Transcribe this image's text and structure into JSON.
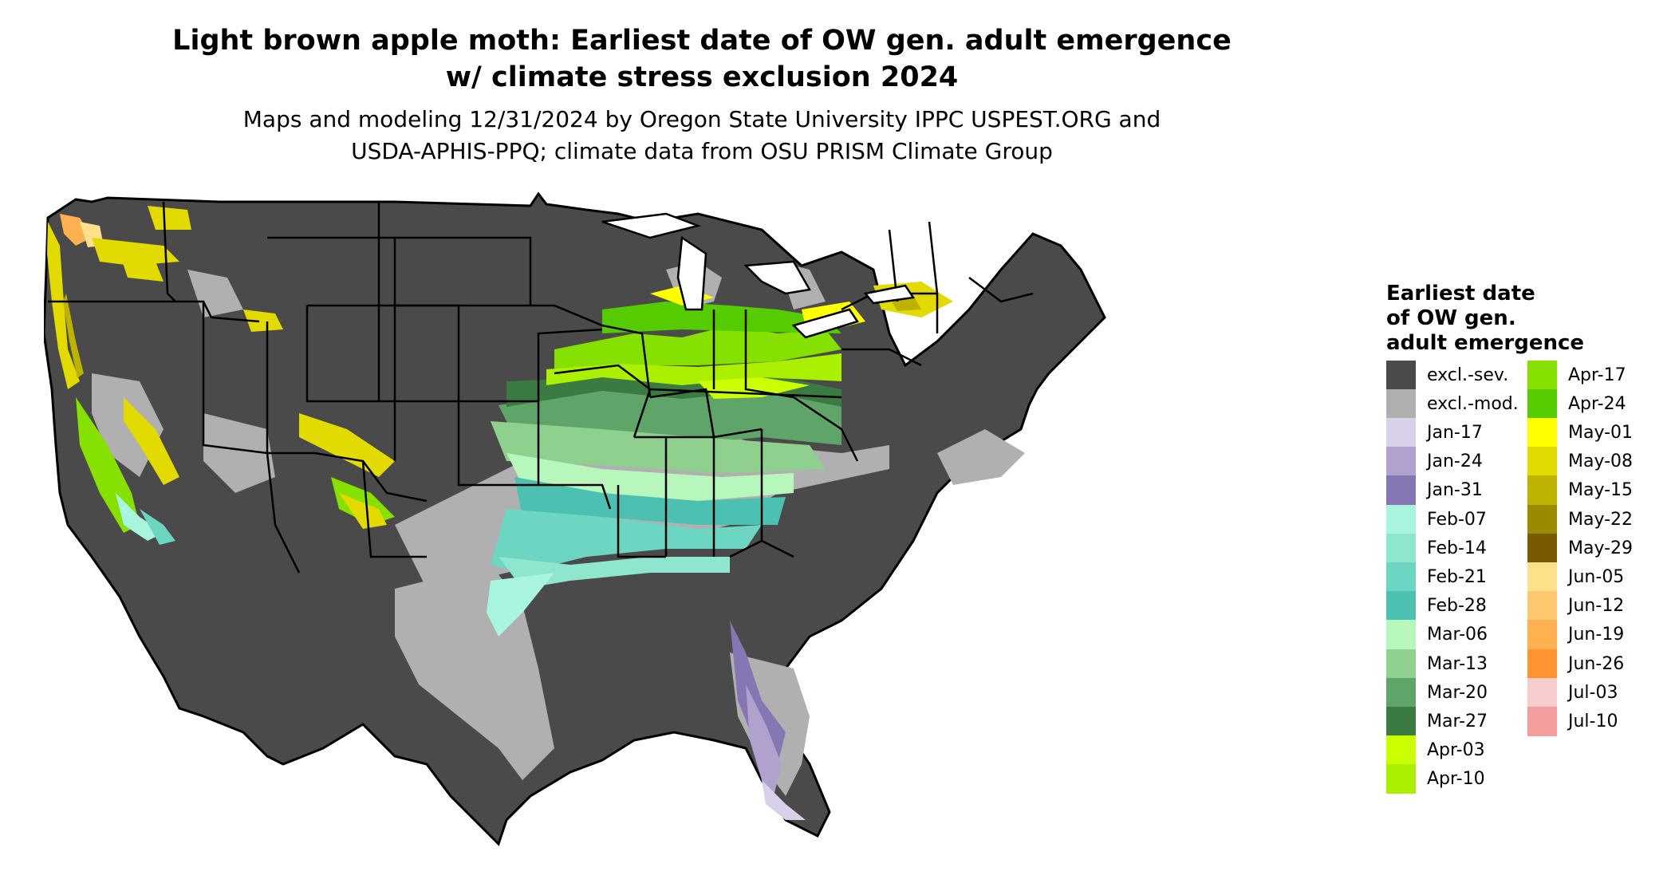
{
  "title_line1": "Light brown apple moth: Earliest date of OW gen. adult emergence",
  "title_line2": "w/ climate stress exclusion 2024",
  "subtitle_line1": "Maps and modeling 12/31/2024 by Oregon State University IPPC USPEST.ORG and",
  "subtitle_line2": "USDA-APHIS-PPQ; climate data from OSU PRISM Climate Group",
  "legend": {
    "title_line1": "Earliest date",
    "title_line2": "of OW gen.",
    "title_line3": "adult emergence",
    "items": [
      {
        "label": "excl.-sev.",
        "color": "#4a4a4a"
      },
      {
        "label": "excl.-mod.",
        "color": "#b0b0b0"
      },
      {
        "label": "Jan-17",
        "color": "#d9d1e9"
      },
      {
        "label": "Jan-24",
        "color": "#b0a1cf"
      },
      {
        "label": "Jan-31",
        "color": "#8677b4"
      },
      {
        "label": "Feb-07",
        "color": "#a9f4de"
      },
      {
        "label": "Feb-14",
        "color": "#8ee6cf"
      },
      {
        "label": "Feb-21",
        "color": "#6cd6c3"
      },
      {
        "label": "Feb-28",
        "color": "#4cc1b2"
      },
      {
        "label": "Mar-06",
        "color": "#b7f7bb"
      },
      {
        "label": "Mar-13",
        "color": "#8fd08f"
      },
      {
        "label": "Mar-20",
        "color": "#5fa56a"
      },
      {
        "label": "Mar-27",
        "color": "#3b7a41"
      },
      {
        "label": "Apr-03",
        "color": "#ccff00"
      },
      {
        "label": "Apr-10",
        "color": "#aaf000"
      },
      {
        "label": "Apr-17",
        "color": "#86e000"
      },
      {
        "label": "Apr-24",
        "color": "#55cc00"
      },
      {
        "label": "May-01",
        "color": "#ffff00"
      },
      {
        "label": "May-08",
        "color": "#e2da00"
      },
      {
        "label": "May-15",
        "color": "#beb200"
      },
      {
        "label": "May-22",
        "color": "#9a8a00"
      },
      {
        "label": "May-29",
        "color": "#7a5a00"
      },
      {
        "label": "Jun-05",
        "color": "#ffe08a"
      },
      {
        "label": "Jun-12",
        "color": "#ffc86e"
      },
      {
        "label": "Jun-19",
        "color": "#ffb050"
      },
      {
        "label": "Jun-26",
        "color": "#ff9430"
      },
      {
        "label": "Jul-03",
        "color": "#f6cccc"
      },
      {
        "label": "Jul-10",
        "color": "#f39d9d"
      }
    ]
  },
  "colors": {
    "background": "#ffffff",
    "border": "#000000",
    "excl_sev": "#4a4a4a",
    "excl_mod": "#b0b0b0"
  }
}
